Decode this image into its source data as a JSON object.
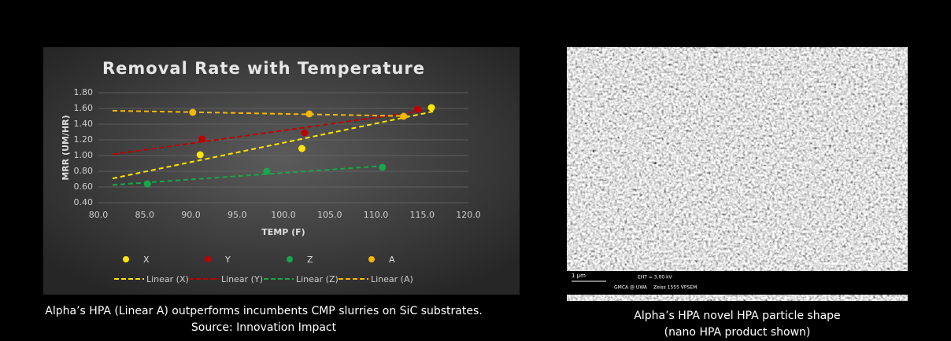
{
  "chart_data": {
    "type": "scatter",
    "title": "Removal Rate with Temperature",
    "y_label": "MRR (UM/HR)",
    "x_label": "TEMP (F)",
    "xlim": [
      80,
      120
    ],
    "xticks": [
      {
        "value": 80,
        "label": "80.0"
      },
      {
        "value": 85,
        "label": "85.0"
      },
      {
        "value": 90,
        "label": "90.0"
      },
      {
        "value": 95,
        "label": "95.0"
      },
      {
        "value": 100,
        "label": "100.0"
      },
      {
        "value": 105,
        "label": "105.0"
      },
      {
        "value": 110,
        "label": "110.0"
      },
      {
        "value": 115,
        "label": "115.0"
      },
      {
        "value": 120,
        "label": "120.0"
      }
    ],
    "ylim": [
      0.4,
      1.8
    ],
    "yticks": [
      {
        "value": 0.4,
        "label": "0.40"
      },
      {
        "value": 0.6,
        "label": "0.60"
      },
      {
        "value": 0.8,
        "label": "0.80"
      },
      {
        "value": 1.0,
        "label": "1.00"
      },
      {
        "value": 1.2,
        "label": "1.20"
      },
      {
        "value": 1.4,
        "label": "1.40"
      },
      {
        "value": 1.6,
        "label": "1.60"
      },
      {
        "value": 1.8,
        "label": "1.80"
      }
    ],
    "grid": true,
    "legend": "bottom",
    "series": [
      {
        "name": "X",
        "trendline": "Linear (X)",
        "color": "#ffe600",
        "x": [
          91,
          102,
          116
        ],
        "values": [
          1.01,
          1.09,
          1.61
        ]
      },
      {
        "name": "Y",
        "trendline": "Linear (Y)",
        "color": "#c00000",
        "x": [
          91.2,
          102.3,
          114.5
        ],
        "values": [
          1.21,
          1.29,
          1.59
        ]
      },
      {
        "name": "Z",
        "trendline": "Linear (Z)",
        "color": "#1aa64a",
        "x": [
          85.3,
          98.2,
          110.7
        ],
        "values": [
          0.64,
          0.8,
          0.85
        ]
      },
      {
        "name": "A",
        "trendline": "Linear (A)",
        "color": "#f5b800",
        "x": [
          90.2,
          102.8,
          113
        ],
        "values": [
          1.55,
          1.53,
          1.5
        ]
      }
    ]
  },
  "left_caption": {
    "line1": "Alpha’s HPA (Linear A) outperforms incumbents CMP slurries on SiC substrates.",
    "line2": "Source: Innovation Impact"
  },
  "right_caption": {
    "line1": "Alpha’s HPA novel HPA particle shape",
    "line2": "(nano HPA product shown)"
  },
  "sem": {
    "scale": "1 µm",
    "eht": "EHT = 3.00 kV",
    "lab": "GMCA @ UWA",
    "scope": "Zeiss 1555 VPSEM"
  }
}
